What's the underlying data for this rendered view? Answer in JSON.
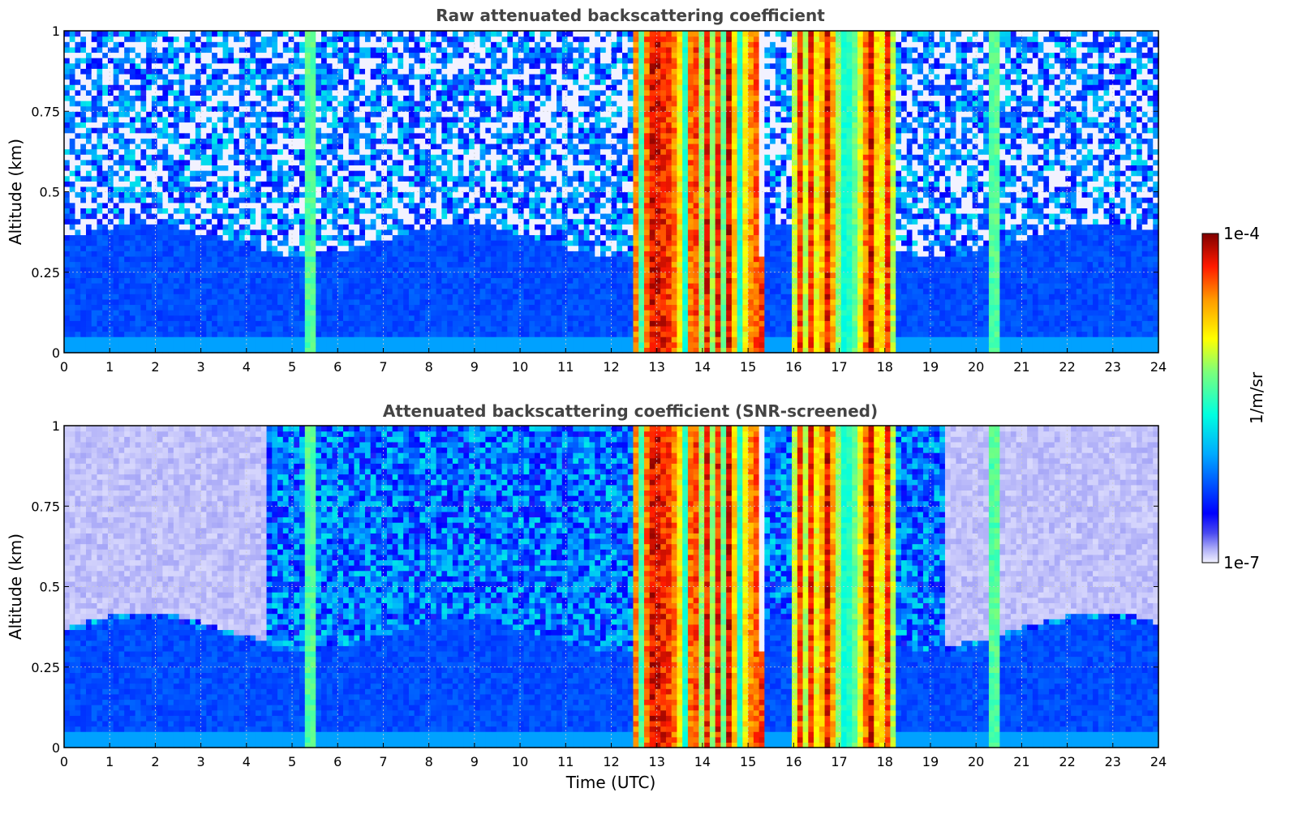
{
  "chart_data": [
    {
      "type": "heatmap",
      "title": "Raw attenuated backscattering coefficient",
      "xlabel": "",
      "ylabel": "Altitude (km)",
      "xlim": [
        0,
        24
      ],
      "ylim": [
        0,
        1
      ],
      "xticks": [
        "0",
        "1",
        "2",
        "3",
        "4",
        "5",
        "6",
        "7",
        "8",
        "9",
        "10",
        "11",
        "12",
        "13",
        "14",
        "15",
        "16",
        "17",
        "18",
        "19",
        "20",
        "21",
        "22",
        "23",
        "24"
      ],
      "yticks": [
        "0",
        "0.25",
        "0.5",
        "0.75",
        "1"
      ],
      "grid": true,
      "screened": false
    },
    {
      "type": "heatmap",
      "title": "Attenuated backscattering coefficient (SNR-screened)",
      "xlabel": "Time (UTC)",
      "ylabel": "Altitude (km)",
      "xlim": [
        0,
        24
      ],
      "ylim": [
        0,
        1
      ],
      "xticks": [
        "0",
        "1",
        "2",
        "3",
        "4",
        "5",
        "6",
        "7",
        "8",
        "9",
        "10",
        "11",
        "12",
        "13",
        "14",
        "15",
        "16",
        "17",
        "18",
        "19",
        "20",
        "21",
        "22",
        "23",
        "24"
      ],
      "yticks": [
        "0",
        "0.25",
        "0.5",
        "0.75",
        "1"
      ],
      "grid": true,
      "screened": true
    }
  ],
  "colorbar": {
    "label": "1/m/sr",
    "max_label": "1e-4",
    "min_label": "1e-7",
    "log_min": -7,
    "log_max": -4,
    "colormap": "jet"
  },
  "features": {
    "aerosol_layer_top_km": 0.35,
    "thin_cloud_spikes_utc": [
      5.43,
      20.38
    ],
    "dense_cloud_period_utc": [
      12.5,
      18.2
    ]
  }
}
